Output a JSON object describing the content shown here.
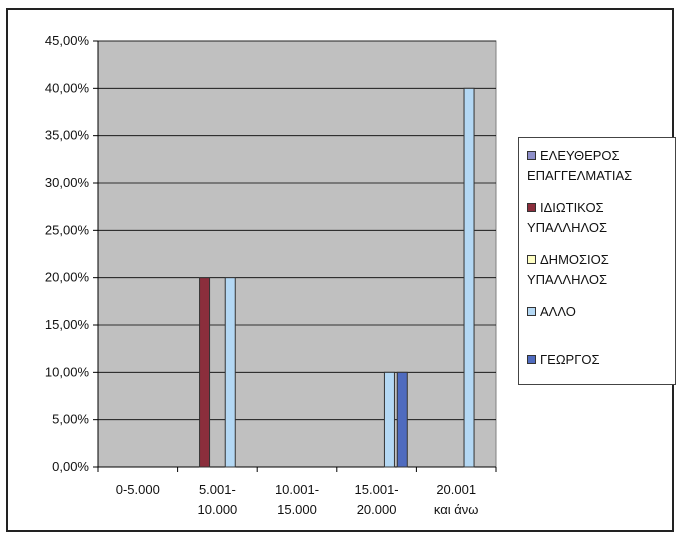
{
  "chart_data": {
    "type": "bar",
    "title": "",
    "xlabel": "",
    "ylabel": "",
    "ylim": [
      0,
      0.45
    ],
    "ytick_step": 0.05,
    "y_format": "percent_2dp_comma",
    "grid": true,
    "legend_position": "right",
    "plot_background": "#c0c0c0",
    "categories": [
      "0-5.000",
      "5.001-\n10.000",
      "10.001-\n15.000",
      "15.001-\n20.000",
      "20.001\nκαι άνω"
    ],
    "category_lines": [
      [
        "0-5.000"
      ],
      [
        "5.001-",
        "10.000"
      ],
      [
        "10.001-",
        "15.000"
      ],
      [
        "15.001-",
        "20.000"
      ],
      [
        "20.001",
        "και άνω"
      ]
    ],
    "series": [
      {
        "name": "ΕΛΕΥΘΕΡΟΣ ΕΠΑΓΓΕΛΜΑΤΙΑΣ",
        "color": "#8e8fc9",
        "values": [
          0,
          0,
          0,
          0,
          0
        ]
      },
      {
        "name": "ΙΔΙΩΤΙΚΟΣ ΥΠΑΛΛΗΛΟΣ",
        "color": "#8b2e3c",
        "values": [
          0,
          0.2,
          0,
          0,
          0
        ]
      },
      {
        "name": "ΔΗΜΟΣΙΟΣ ΥΠΑΛΛΗΛΟΣ",
        "color": "#ffffc4",
        "values": [
          0,
          0,
          0,
          0,
          0
        ]
      },
      {
        "name": "ΑΛΛΟ",
        "color": "#b4d8f4",
        "values": [
          0,
          0.2,
          0,
          0.1,
          0.4
        ]
      },
      {
        "name": "ΓΕΩΡΓΟΣ",
        "color": "#4f6bbf",
        "values": [
          0,
          0,
          0,
          0.1,
          0
        ]
      }
    ]
  },
  "legend": {
    "items": [
      {
        "lines": [
          "ΕΛΕΥΘΕΡΟΣ",
          "ΕΠΑΓΓΕΛΜΑΤΙΑΣ"
        ],
        "color": "#8e8fc9"
      },
      {
        "lines": [
          "ΙΔΙΩΤΙΚΟΣ",
          "ΥΠΑΛΛΗΛΟΣ"
        ],
        "color": "#8b2e3c"
      },
      {
        "lines": [
          "ΔΗΜΟΣΙΟΣ",
          "ΥΠΑΛΛΗΛΟΣ"
        ],
        "color": "#ffffc4"
      },
      {
        "lines": [
          "ΑΛΛΟ"
        ],
        "color": "#b4d8f4"
      },
      {
        "lines": [
          "ΓΕΩΡΓΟΣ"
        ],
        "color": "#4f6bbf"
      }
    ]
  }
}
